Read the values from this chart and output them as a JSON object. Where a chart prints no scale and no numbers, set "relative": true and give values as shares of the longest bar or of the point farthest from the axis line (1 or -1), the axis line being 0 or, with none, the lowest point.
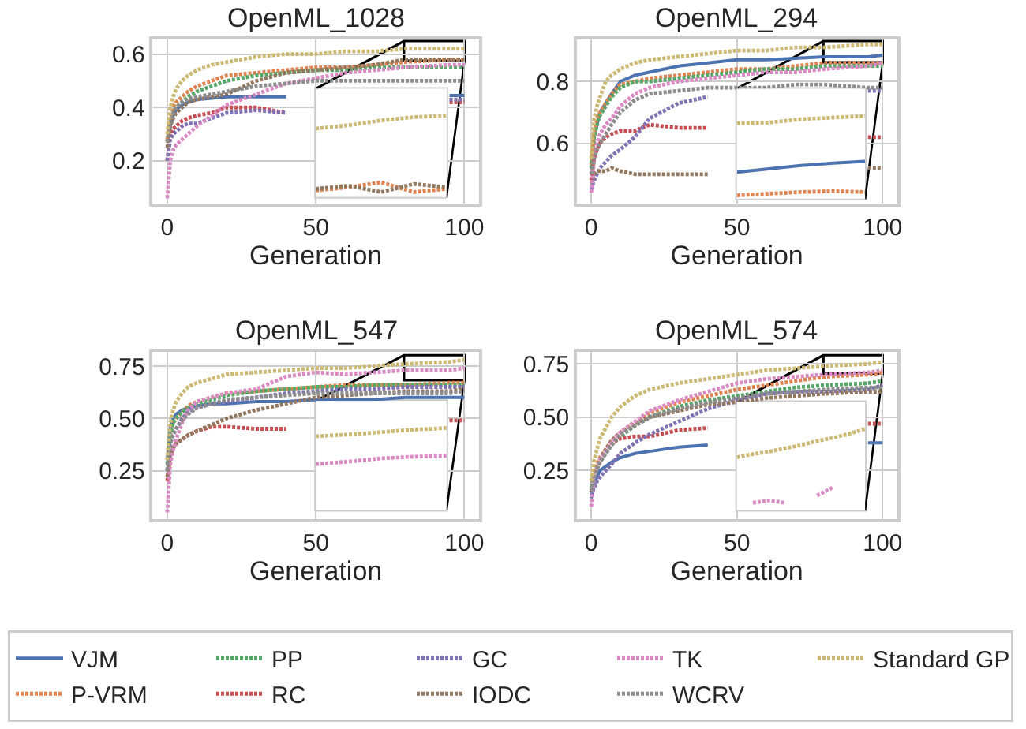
{
  "chart_data": [
    {
      "type": "line",
      "title": "OpenML_1028",
      "xlabel": "Generation",
      "x": [
        0,
        1,
        2,
        3,
        5,
        7,
        10,
        15,
        20,
        30,
        40,
        50,
        60,
        70,
        80,
        95,
        100
      ],
      "xlim": [
        -5,
        105
      ],
      "xticks": [
        0,
        50,
        100
      ],
      "ylim": [
        0.04,
        0.655
      ],
      "yticks": [
        0.2,
        0.4,
        0.6
      ],
      "grid": true,
      "legend": "bottom",
      "marker": "none",
      "series": [
        {
          "name": "VJM",
          "color": "#4c72b0",
          "line_style": "solid",
          "values": [
            0.27,
            0.33,
            0.37,
            0.39,
            0.41,
            0.42,
            0.43,
            0.435,
            0.44,
            0.44,
            0.44,
            null,
            null,
            null,
            null,
            0.445,
            0.445
          ]
        },
        {
          "name": "P-VRM",
          "color": "#dd8452",
          "line_style": "dotted",
          "values": [
            0.28,
            0.36,
            0.4,
            0.42,
            0.44,
            0.46,
            0.48,
            0.5,
            0.52,
            0.53,
            0.54,
            0.55,
            0.55,
            0.56,
            0.57,
            0.58,
            0.58
          ]
        },
        {
          "name": "PP",
          "color": "#55a868",
          "line_style": "dotted",
          "values": [
            0.27,
            0.34,
            0.38,
            0.4,
            0.42,
            0.44,
            0.46,
            0.48,
            0.5,
            0.52,
            0.53,
            0.54,
            0.54,
            0.55,
            0.55,
            0.55,
            0.55
          ]
        },
        {
          "name": "RC",
          "color": "#c44e52",
          "line_style": "dotted",
          "values": [
            0.2,
            0.3,
            0.32,
            0.33,
            0.35,
            0.36,
            0.37,
            0.38,
            0.4,
            0.4,
            0.38,
            null,
            null,
            null,
            null,
            0.42,
            0.42
          ]
        },
        {
          "name": "GC",
          "color": "#8172b3",
          "line_style": "dotted",
          "values": [
            0.2,
            0.28,
            0.3,
            0.31,
            0.33,
            0.34,
            0.34,
            0.36,
            0.38,
            0.39,
            0.38,
            null,
            null,
            null,
            null,
            0.43,
            0.43
          ]
        },
        {
          "name": "IODC",
          "color": "#937860",
          "line_style": "dotted",
          "values": [
            0.25,
            0.33,
            0.36,
            0.38,
            0.4,
            0.42,
            0.43,
            0.44,
            0.45,
            0.5,
            0.53,
            0.54,
            0.55,
            0.56,
            0.58,
            0.58,
            0.58
          ]
        },
        {
          "name": "TK",
          "color": "#da8bc3",
          "line_style": "dotted",
          "values": [
            0.06,
            0.2,
            0.24,
            0.26,
            0.28,
            0.3,
            0.33,
            0.37,
            0.41,
            0.45,
            0.49,
            0.51,
            0.53,
            0.54,
            0.55,
            0.56,
            0.56
          ]
        },
        {
          "name": "WCRV",
          "color": "#8c8c8c",
          "line_style": "dotted",
          "values": [
            0.27,
            0.34,
            0.38,
            0.4,
            0.42,
            0.43,
            0.44,
            0.45,
            0.46,
            0.48,
            0.49,
            0.5,
            0.5,
            0.5,
            0.5,
            0.5,
            0.5
          ]
        },
        {
          "name": "Standard GP",
          "color": "#ccb974",
          "line_style": "dotted",
          "values": [
            0.3,
            0.4,
            0.44,
            0.47,
            0.5,
            0.52,
            0.54,
            0.56,
            0.57,
            0.59,
            0.6,
            0.6,
            0.61,
            0.61,
            0.62,
            0.62,
            0.62
          ]
        }
      ]
    },
    {
      "type": "line",
      "relative": true,
      "categories": [
        null,
        null,
        null,
        null,
        null
      ],
      "marker": "none",
      "series": [
        {
          "name": "P-VRM",
          "color": "#dd8452",
          "line_style": "dotted",
          "values": [
            0.08,
            0.12,
            0.18,
            0.06,
            0.1
          ]
        },
        {
          "name": "IODC",
          "color": "#937860",
          "line_style": "dotted",
          "values": [
            0.1,
            0.14,
            0.06,
            0.16,
            0.12
          ]
        },
        {
          "name": "Standard GP",
          "color": "#ccb974",
          "line_style": "dotted",
          "values": [
            0.84,
            0.88,
            0.94,
            0.98,
            1
          ]
        }
      ]
    },
    {
      "type": "line",
      "title": "OpenML_294",
      "xlabel": "Generation",
      "x": [
        0,
        1,
        2,
        3,
        5,
        7,
        10,
        15,
        20,
        30,
        40,
        50,
        60,
        70,
        80,
        95,
        100
      ],
      "xlim": [
        -5,
        105
      ],
      "xticks": [
        0,
        50,
        100
      ],
      "ylim": [
        0.405,
        0.936
      ],
      "yticks": [
        0.6,
        0.8
      ],
      "grid": true,
      "marker": "none",
      "series": [
        {
          "name": "VJM",
          "color": "#4c72b0",
          "line_style": "solid",
          "values": [
            0.52,
            0.62,
            0.66,
            0.7,
            0.73,
            0.76,
            0.8,
            0.82,
            0.83,
            0.85,
            0.86,
            0.87,
            0.87,
            0.875,
            0.88,
            0.88,
            0.885
          ]
        },
        {
          "name": "P-VRM",
          "color": "#dd8452",
          "line_style": "dotted",
          "values": [
            0.53,
            0.63,
            0.68,
            0.7,
            0.73,
            0.76,
            0.79,
            0.8,
            0.81,
            0.82,
            0.83,
            0.84,
            0.84,
            0.85,
            0.86,
            0.86,
            0.86
          ]
        },
        {
          "name": "PP",
          "color": "#55a868",
          "line_style": "dotted",
          "values": [
            0.52,
            0.62,
            0.66,
            0.69,
            0.72,
            0.75,
            0.78,
            0.8,
            0.8,
            0.81,
            0.82,
            0.83,
            0.84,
            0.84,
            0.85,
            0.85,
            0.85
          ]
        },
        {
          "name": "RC",
          "color": "#c44e52",
          "line_style": "dotted",
          "values": [
            0.48,
            0.55,
            0.58,
            0.6,
            0.62,
            0.63,
            0.64,
            0.64,
            0.66,
            0.65,
            0.65,
            null,
            null,
            null,
            null,
            0.62,
            0.62
          ]
        },
        {
          "name": "GC",
          "color": "#8172b3",
          "line_style": "dotted",
          "values": [
            0.45,
            0.48,
            0.5,
            0.52,
            0.54,
            0.56,
            0.58,
            0.62,
            0.68,
            0.73,
            0.75,
            null,
            null,
            null,
            null,
            0.77,
            0.77
          ]
        },
        {
          "name": "IODC",
          "color": "#937860",
          "line_style": "dotted",
          "values": [
            0.47,
            0.5,
            0.51,
            0.51,
            0.51,
            0.52,
            0.51,
            0.5,
            0.5,
            0.5,
            0.5,
            null,
            null,
            null,
            null,
            0.52,
            0.52
          ]
        },
        {
          "name": "TK",
          "color": "#da8bc3",
          "line_style": "dotted",
          "values": [
            0.44,
            0.55,
            0.6,
            0.63,
            0.66,
            0.68,
            0.72,
            0.76,
            0.78,
            0.8,
            0.81,
            0.82,
            0.83,
            0.83,
            0.84,
            0.85,
            0.86
          ]
        },
        {
          "name": "WCRV",
          "color": "#8c8c8c",
          "line_style": "dotted",
          "values": [
            0.5,
            0.55,
            0.58,
            0.6,
            0.63,
            0.66,
            0.7,
            0.74,
            0.76,
            0.77,
            0.78,
            0.78,
            0.78,
            0.79,
            0.79,
            0.78,
            0.78
          ]
        },
        {
          "name": "Standard GP",
          "color": "#ccb974",
          "line_style": "dotted",
          "values": [
            0.55,
            0.68,
            0.72,
            0.75,
            0.8,
            0.82,
            0.84,
            0.86,
            0.87,
            0.88,
            0.89,
            0.9,
            0.9,
            0.91,
            0.91,
            0.92,
            0.92
          ]
        }
      ]
    },
    {
      "type": "line",
      "relative": true,
      "categories": [
        null,
        null,
        null,
        null,
        null
      ],
      "marker": "none",
      "series": [
        {
          "name": "VJM",
          "color": "#4c72b0",
          "line_style": "solid",
          "values": [
            0.32,
            0.36,
            0.4,
            0.43,
            0.45
          ]
        },
        {
          "name": "P-VRM",
          "color": "#dd8452",
          "line_style": "dotted",
          "values": [
            0.04,
            0.06,
            0.08,
            0.09,
            0.08
          ]
        },
        {
          "name": "Standard GP",
          "color": "#ccb974",
          "line_style": "dotted",
          "values": [
            0.91,
            0.92,
            0.96,
            0.98,
            1
          ]
        }
      ]
    },
    {
      "type": "line",
      "title": "OpenML_547",
      "xlabel": "Generation",
      "x": [
        0,
        1,
        2,
        3,
        5,
        7,
        10,
        15,
        20,
        30,
        40,
        50,
        60,
        70,
        80,
        95,
        100
      ],
      "xlim": [
        -5,
        105
      ],
      "xticks": [
        0,
        50,
        100
      ],
      "ylim": [
        0.018,
        0.818
      ],
      "yticks": [
        {
          "value": 0.25,
          "label": "0.25"
        },
        {
          "value": 0.5,
          "label": "0.50"
        },
        {
          "value": 0.75,
          "label": "0.75"
        }
      ],
      "grid": true,
      "marker": "none",
      "series": [
        {
          "name": "VJM",
          "color": "#4c72b0",
          "line_style": "solid",
          "values": [
            0.3,
            0.45,
            0.5,
            0.52,
            0.54,
            0.55,
            0.56,
            0.57,
            0.57,
            0.58,
            0.58,
            0.59,
            0.59,
            0.59,
            0.6,
            0.6,
            0.6
          ]
        },
        {
          "name": "P-VRM",
          "color": "#dd8452",
          "line_style": "dotted",
          "values": [
            0.3,
            0.42,
            0.48,
            0.5,
            0.53,
            0.56,
            0.58,
            0.6,
            0.62,
            0.63,
            0.64,
            0.65,
            0.66,
            0.66,
            0.66,
            0.67,
            0.67
          ]
        },
        {
          "name": "PP",
          "color": "#55a868",
          "line_style": "dotted",
          "values": [
            0.28,
            0.42,
            0.48,
            0.5,
            0.53,
            0.55,
            0.57,
            0.59,
            0.61,
            0.63,
            0.64,
            0.65,
            0.65,
            0.66,
            0.66,
            0.66,
            0.66
          ]
        },
        {
          "name": "RC",
          "color": "#c44e52",
          "line_style": "dotted",
          "values": [
            0.2,
            0.32,
            0.36,
            0.38,
            0.4,
            0.42,
            0.44,
            0.46,
            0.46,
            0.45,
            0.45,
            null,
            null,
            null,
            null,
            0.49,
            0.49
          ]
        },
        {
          "name": "GC",
          "color": "#8172b3",
          "line_style": "dotted",
          "values": [
            0.25,
            0.38,
            0.42,
            0.45,
            0.5,
            0.53,
            0.55,
            0.57,
            0.58,
            0.6,
            0.62,
            0.63,
            0.64,
            0.64,
            0.65,
            0.65,
            0.65
          ]
        },
        {
          "name": "IODC",
          "color": "#937860",
          "line_style": "dotted",
          "values": [
            0.22,
            0.32,
            0.36,
            0.38,
            0.4,
            0.42,
            0.44,
            0.47,
            0.5,
            0.54,
            0.57,
            0.6,
            0.61,
            0.62,
            0.63,
            0.63,
            0.64
          ]
        },
        {
          "name": "TK",
          "color": "#da8bc3",
          "line_style": "dotted",
          "values": [
            0.05,
            0.28,
            0.35,
            0.4,
            0.48,
            0.54,
            0.58,
            0.6,
            0.62,
            0.64,
            0.7,
            0.72,
            0.71,
            0.72,
            0.73,
            0.73,
            0.74
          ]
        },
        {
          "name": "WCRV",
          "color": "#8c8c8c",
          "line_style": "dotted",
          "values": [
            0.25,
            0.38,
            0.42,
            0.45,
            0.49,
            0.52,
            0.55,
            0.57,
            0.59,
            0.6,
            0.61,
            0.62,
            0.62,
            0.62,
            0.62,
            0.62,
            0.63
          ]
        },
        {
          "name": "Standard GP",
          "color": "#ccb974",
          "line_style": "dotted",
          "values": [
            0.3,
            0.48,
            0.54,
            0.58,
            0.62,
            0.65,
            0.67,
            0.69,
            0.71,
            0.72,
            0.73,
            0.74,
            0.74,
            0.75,
            0.76,
            0.77,
            0.78
          ]
        }
      ]
    },
    {
      "type": "line",
      "relative": true,
      "categories": [
        null,
        null,
        null,
        null,
        null
      ],
      "marker": "none",
      "series": [
        {
          "name": "TK",
          "color": "#da8bc3",
          "line_style": "dotted",
          "values": [
            0.56,
            0.59,
            0.63,
            0.65,
            0.66
          ]
        },
        {
          "name": "Standard GP",
          "color": "#ccb974",
          "line_style": "dotted",
          "values": [
            0.9,
            0.92,
            0.95,
            0.98,
            1
          ]
        }
      ]
    },
    {
      "type": "line",
      "title": "OpenML_574",
      "xlabel": "Generation",
      "x": [
        0,
        1,
        2,
        3,
        5,
        7,
        10,
        15,
        20,
        30,
        40,
        50,
        60,
        70,
        80,
        95,
        100
      ],
      "xlim": [
        -5,
        105
      ],
      "xticks": [
        0,
        50,
        100
      ],
      "ylim": [
        0.022,
        0.807
      ],
      "yticks": [
        {
          "value": 0.25,
          "label": "0.25"
        },
        {
          "value": 0.5,
          "label": "0.50"
        },
        {
          "value": 0.75,
          "label": "0.75"
        }
      ],
      "grid": true,
      "marker": "none",
      "series": [
        {
          "name": "VJM",
          "color": "#4c72b0",
          "line_style": "solid",
          "values": [
            0.12,
            0.18,
            0.22,
            0.25,
            0.27,
            0.29,
            0.31,
            0.33,
            0.34,
            0.36,
            0.37,
            null,
            null,
            null,
            null,
            0.38,
            0.38
          ]
        },
        {
          "name": "P-VRM",
          "color": "#dd8452",
          "line_style": "dotted",
          "values": [
            0.2,
            0.25,
            0.28,
            0.31,
            0.35,
            0.39,
            0.43,
            0.47,
            0.52,
            0.57,
            0.6,
            0.63,
            0.65,
            0.67,
            0.69,
            0.7,
            0.71
          ]
        },
        {
          "name": "PP",
          "color": "#55a868",
          "line_style": "dotted",
          "values": [
            0.17,
            0.23,
            0.26,
            0.29,
            0.33,
            0.37,
            0.41,
            0.46,
            0.5,
            0.55,
            0.58,
            0.6,
            0.62,
            0.64,
            0.65,
            0.66,
            0.67
          ]
        },
        {
          "name": "RC",
          "color": "#c44e52",
          "line_style": "dotted",
          "values": [
            0.15,
            0.22,
            0.26,
            0.29,
            0.34,
            0.38,
            0.4,
            0.41,
            0.41,
            0.44,
            0.45,
            null,
            null,
            null,
            null,
            0.47,
            0.47
          ]
        },
        {
          "name": "GC",
          "color": "#8172b3",
          "line_style": "dotted",
          "values": [
            0.13,
            0.17,
            0.2,
            0.22,
            0.25,
            0.28,
            0.33,
            0.38,
            0.42,
            0.48,
            0.54,
            0.58,
            0.61,
            0.62,
            0.62,
            0.63,
            0.65
          ]
        },
        {
          "name": "IODC",
          "color": "#937860",
          "line_style": "dotted",
          "values": [
            0.15,
            0.22,
            0.26,
            0.3,
            0.35,
            0.39,
            0.43,
            0.47,
            0.5,
            0.53,
            0.56,
            0.57,
            0.59,
            0.6,
            0.61,
            0.62,
            0.62
          ]
        },
        {
          "name": "TK",
          "color": "#da8bc3",
          "line_style": "dotted",
          "values": [
            0.08,
            0.22,
            0.26,
            0.3,
            0.34,
            0.38,
            0.43,
            0.48,
            0.53,
            0.58,
            0.62,
            0.66,
            0.68,
            0.69,
            0.7,
            0.71,
            0.72
          ]
        },
        {
          "name": "WCRV",
          "color": "#8c8c8c",
          "line_style": "dotted",
          "values": [
            0.15,
            0.22,
            0.26,
            0.29,
            0.33,
            0.37,
            0.42,
            0.46,
            0.5,
            0.54,
            0.57,
            0.59,
            0.61,
            0.62,
            0.63,
            0.64,
            0.64
          ]
        },
        {
          "name": "Standard GP",
          "color": "#ccb974",
          "line_style": "dotted",
          "values": [
            0.2,
            0.3,
            0.35,
            0.4,
            0.45,
            0.5,
            0.55,
            0.6,
            0.63,
            0.66,
            0.68,
            0.7,
            0.72,
            0.73,
            0.74,
            0.75,
            0.76
          ]
        }
      ]
    },
    {
      "type": "line",
      "relative": true,
      "categories": [
        null,
        null,
        null,
        null,
        null,
        null,
        null,
        null,
        null
      ],
      "marker": "none",
      "series": [
        {
          "name": "TK",
          "color": "#da8bc3",
          "line_style": "dotted",
          "values": [
            null,
            0.09,
            0.12,
            0.09,
            null,
            0.18,
            0.28,
            null,
            null
          ]
        },
        {
          "name": "Standard GP",
          "color": "#ccb974",
          "line_style": "dotted",
          "values": [
            0.65,
            0.69,
            0.72,
            0.76,
            0.8,
            0.85,
            0.89,
            0.94,
            1
          ]
        }
      ]
    }
  ]
}
